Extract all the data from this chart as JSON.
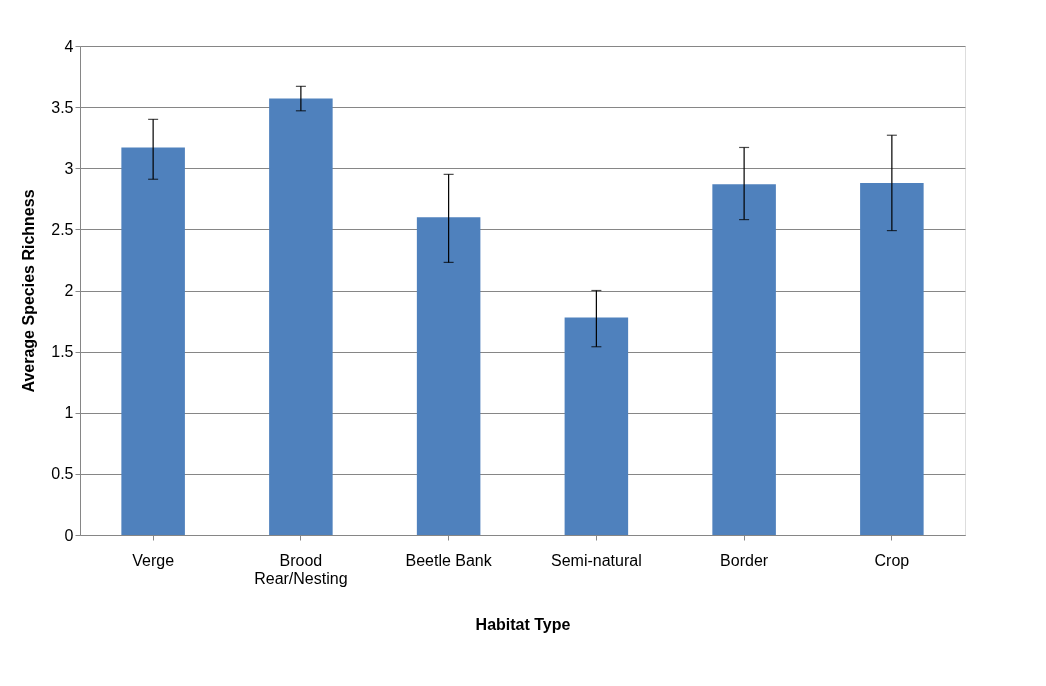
{
  "chart_data": {
    "type": "bar",
    "xlabel": "Habitat Type",
    "ylabel": "Average Species Richness",
    "categories": [
      "Verge",
      "Brood Rear/Nesting",
      "Beetle Bank",
      "Semi-natural",
      "Border",
      "Crop"
    ],
    "values": [
      3.17,
      3.57,
      2.6,
      1.78,
      2.87,
      2.88
    ],
    "errors": [
      [
        2.91,
        3.4
      ],
      [
        3.47,
        3.67
      ],
      [
        2.23,
        2.95
      ],
      [
        1.54,
        2.0
      ],
      [
        2.58,
        3.17
      ],
      [
        2.49,
        3.27
      ]
    ],
    "color": "#4f81bd",
    "ylim": [
      0,
      4
    ],
    "yticks": [
      0,
      0.5,
      1,
      1.5,
      2,
      2.5,
      3,
      3.5,
      4
    ],
    "grid": "y"
  }
}
